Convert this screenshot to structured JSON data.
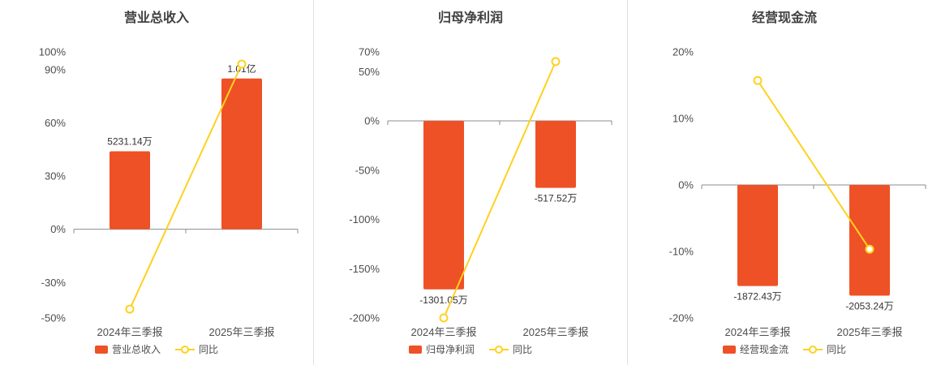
{
  "colors": {
    "bar": "#ee5126",
    "line": "#ffd11e",
    "axis_line": "#8c8c8c",
    "tick_text": "#4d4d4d",
    "value_label": "#333333",
    "title": "#404040",
    "divider": "#e0e0e0",
    "background": "#ffffff",
    "marker_fill": "#ffffff"
  },
  "chart_data": [
    {
      "type": "bar",
      "title": "营业总收入",
      "categories": [
        "2024年三季报",
        "2025年三季报"
      ],
      "ylim": [
        -50,
        100
      ],
      "yticks": [
        100,
        90,
        60,
        30,
        0,
        -30,
        -50
      ],
      "ytick_suffix": "%",
      "grid": false,
      "legend_position": "bottom",
      "series": [
        {
          "name": "营业总收入",
          "type": "bar",
          "data_labels": [
            "5231.14万",
            "1.01亿"
          ],
          "values_on_axis": [
            44,
            85
          ]
        },
        {
          "name": "同比",
          "type": "line",
          "unit": "%",
          "values_on_axis": [
            -45,
            93.12
          ]
        }
      ]
    },
    {
      "type": "bar",
      "title": "归母净利润",
      "categories": [
        "2024年三季报",
        "2025年三季报"
      ],
      "ylim": [
        -200,
        70
      ],
      "yticks": [
        70,
        50,
        0,
        -50,
        -100,
        -150,
        -200
      ],
      "ytick_suffix": "%",
      "grid": false,
      "legend_position": "bottom",
      "series": [
        {
          "name": "归母净利润",
          "type": "bar",
          "data_labels": [
            "-1301.05万",
            "-517.52万"
          ],
          "values_on_axis": [
            -171,
            -68
          ]
        },
        {
          "name": "同比",
          "type": "line",
          "unit": "%",
          "values_on_axis": [
            -200,
            60.22
          ]
        }
      ]
    },
    {
      "type": "bar",
      "title": "经营现金流",
      "categories": [
        "2024年三季报",
        "2025年三季报"
      ],
      "ylim": [
        -20,
        20
      ],
      "yticks": [
        20,
        10,
        0,
        -10,
        -20
      ],
      "ytick_suffix": "%",
      "grid": false,
      "legend_position": "bottom",
      "series": [
        {
          "name": "经营现金流",
          "type": "bar",
          "data_labels": [
            "-1872.43万",
            "-2053.24万"
          ],
          "values_on_axis": [
            -15.2,
            -16.65
          ]
        },
        {
          "name": "同比",
          "type": "line",
          "unit": "%",
          "values_on_axis": [
            15.7,
            -9.66
          ]
        }
      ]
    }
  ]
}
